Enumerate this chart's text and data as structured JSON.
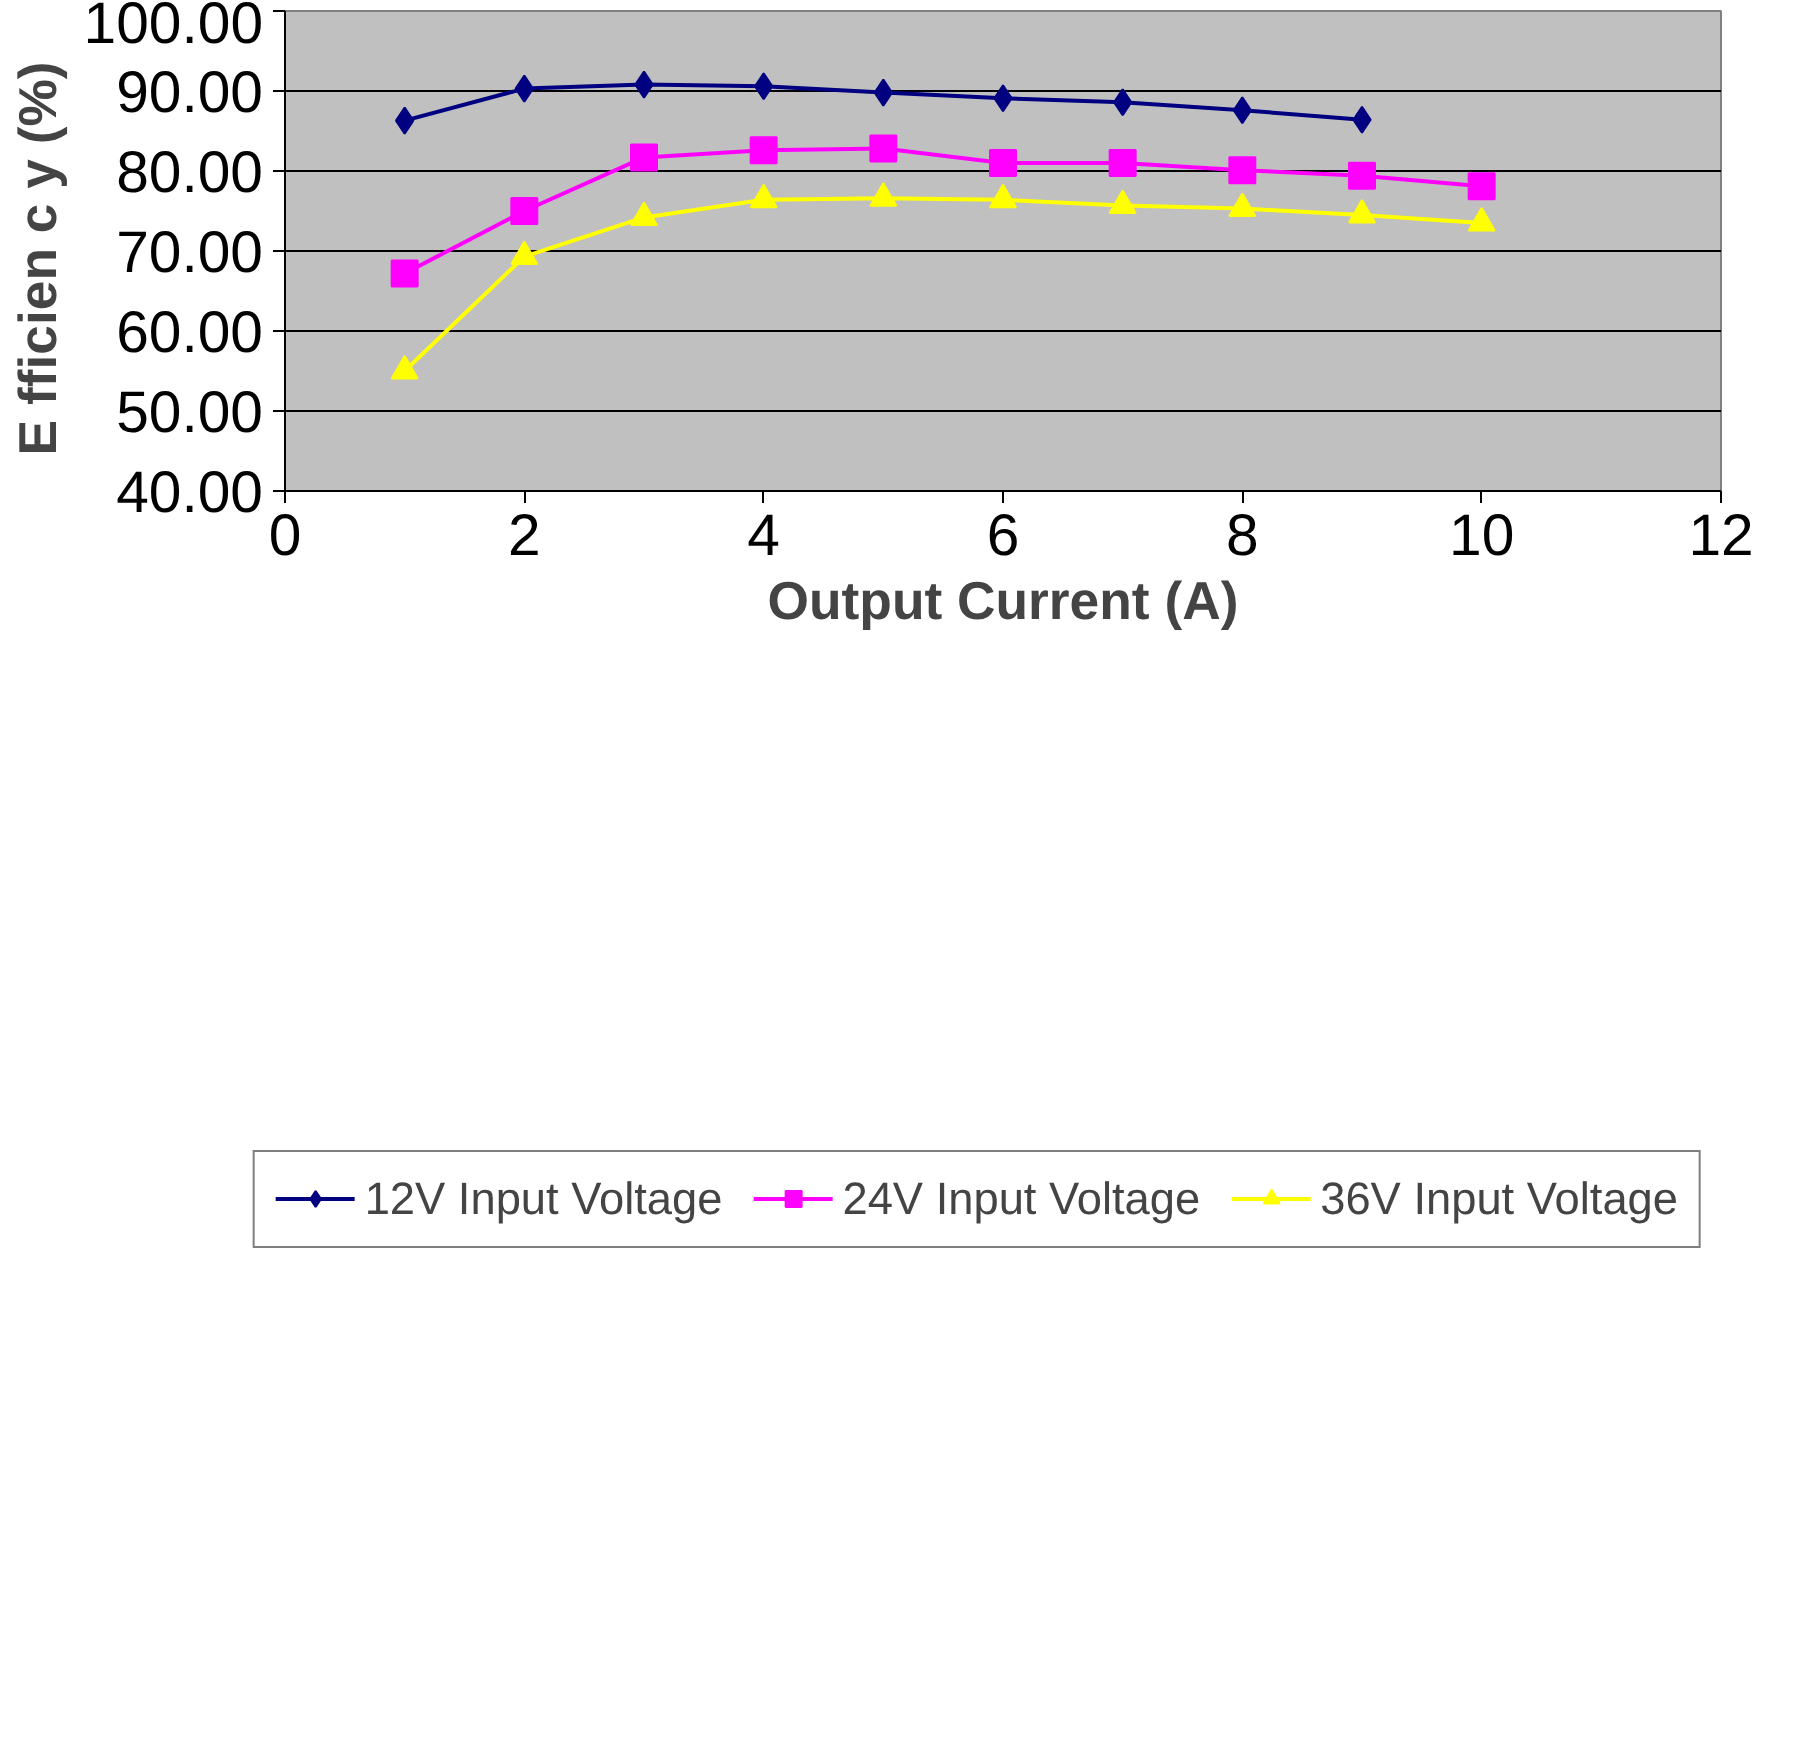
{
  "chart_data": {
    "type": "line",
    "xlabel": "Output Current (A)",
    "ylabel": "E fficien c y  (%)",
    "x": [
      1,
      2,
      3,
      4,
      5,
      6,
      7,
      8,
      9,
      10
    ],
    "series": [
      {
        "name": "12V Input Voltage",
        "color": "#000080",
        "marker": "diamond",
        "values": [
          86.3,
          90.3,
          90.8,
          90.6,
          89.8,
          89.1,
          88.6,
          87.6,
          86.4,
          null
        ]
      },
      {
        "name": "24V Input Voltage",
        "color": "#ff00ff",
        "marker": "square",
        "values": [
          67.2,
          75.0,
          81.7,
          82.6,
          82.8,
          81.0,
          81.0,
          80.1,
          79.4,
          78.1
        ]
      },
      {
        "name": "36V Input Voltage",
        "color": "#ffff00",
        "marker": "triangle",
        "values": [
          55.0,
          69.3,
          74.2,
          76.4,
          76.6,
          76.4,
          75.7,
          75.3,
          74.5,
          73.5
        ]
      }
    ],
    "xlim": [
      0,
      12
    ],
    "xticks": [
      0,
      2,
      4,
      6,
      8,
      10,
      12
    ],
    "ylim": [
      40,
      100
    ],
    "yticks": [
      {
        "value": 40,
        "label": "40.00"
      },
      {
        "value": 50,
        "label": "50.00"
      },
      {
        "value": 60,
        "label": "60.00"
      },
      {
        "value": 70,
        "label": "70.00"
      },
      {
        "value": 80,
        "label": "80.00"
      },
      {
        "value": 90,
        "label": "90.00"
      },
      {
        "value": 100,
        "label": "100.00"
      }
    ],
    "grid": "y",
    "legend": "bottom"
  }
}
